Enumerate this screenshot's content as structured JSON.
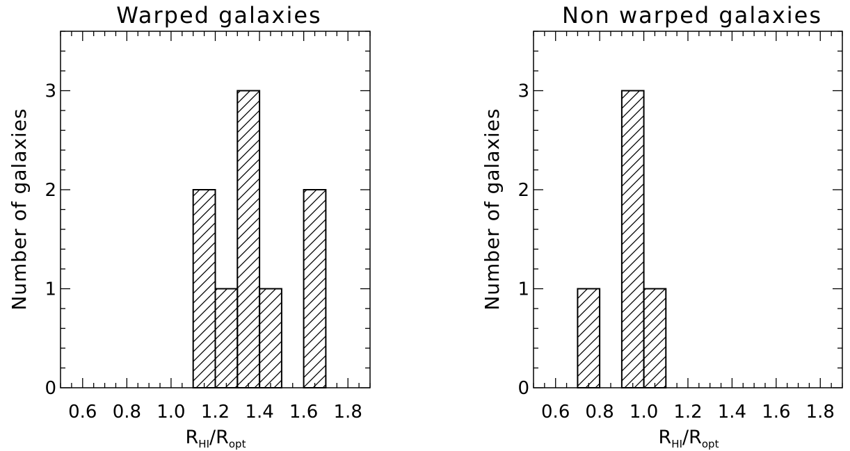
{
  "chart_data": [
    {
      "type": "bar",
      "title": "Warped galaxies",
      "xlabel": {
        "main1": "R",
        "sub1": "HI",
        "sep": "/",
        "main2": "R",
        "sub2": "opt"
      },
      "ylabel": "Number of galaxies",
      "xlim": [
        0.5,
        1.9
      ],
      "ylim": [
        0,
        3.6
      ],
      "xticks": [
        "0.6",
        "0.8",
        "1.0",
        "1.2",
        "1.4",
        "1.6",
        "1.8"
      ],
      "yticks": [
        "0",
        "1",
        "2",
        "3"
      ],
      "bin_width": 0.1,
      "bins": [
        {
          "start": 1.1,
          "count": 2
        },
        {
          "start": 1.2,
          "count": 1
        },
        {
          "start": 1.3,
          "count": 3
        },
        {
          "start": 1.4,
          "count": 1
        },
        {
          "start": 1.6,
          "count": 2
        }
      ],
      "fill": "diagonal-hatch"
    },
    {
      "type": "bar",
      "title": "Non warped galaxies",
      "xlabel": {
        "main1": "R",
        "sub1": "HI",
        "sep": "/",
        "main2": "R",
        "sub2": "opt"
      },
      "ylabel": "Number of galaxies",
      "xlim": [
        0.5,
        1.9
      ],
      "ylim": [
        0,
        3.6
      ],
      "xticks": [
        "0.6",
        "0.8",
        "1.0",
        "1.2",
        "1.4",
        "1.6",
        "1.8"
      ],
      "yticks": [
        "0",
        "1",
        "2",
        "3"
      ],
      "bin_width": 0.1,
      "bins": [
        {
          "start": 0.7,
          "count": 1
        },
        {
          "start": 0.9,
          "count": 3
        },
        {
          "start": 1.0,
          "count": 1
        }
      ],
      "fill": "diagonal-hatch"
    }
  ]
}
